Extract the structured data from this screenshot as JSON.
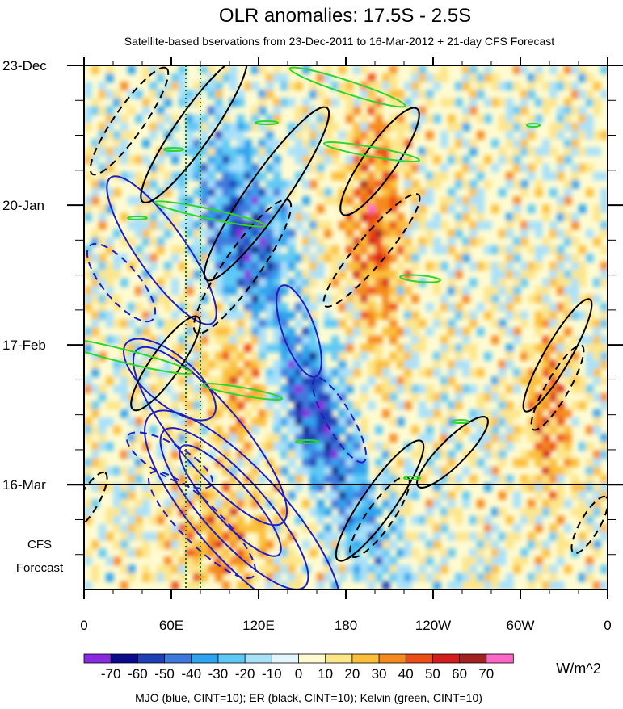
{
  "chart_data": {
    "type": "heatmap",
    "title": "OLR anomalies: 17.5S - 2.5S",
    "subtitle": "Satellite-based bservations from 23-Dec-2011 to 16-Mar-2012 + 21-day CFS Forecast",
    "x_ticks": [
      "0",
      "60E",
      "120E",
      "180",
      "120W",
      "60W",
      "0"
    ],
    "x_range": [
      0,
      360
    ],
    "y_ticks": [
      "23-Dec",
      "20-Jan",
      "17-Feb",
      "16-Mar"
    ],
    "y_tick_days": [
      0,
      28,
      56,
      84
    ],
    "y_range_days": [
      0,
      105
    ],
    "forecast_label": [
      "CFS",
      "Forecast"
    ],
    "forecast_start_day": 84,
    "colorbar": {
      "levels": [
        "-70",
        "-60",
        "-50",
        "-40",
        "-30",
        "-20",
        "-10",
        "0",
        "10",
        "20",
        "30",
        "40",
        "50",
        "60",
        "70"
      ],
      "colors": [
        "#8a2be2",
        "#0a0a8c",
        "#1e3fb8",
        "#3f78dd",
        "#2ea4ee",
        "#5ec9f5",
        "#a9e1fa",
        "#e3f6fd",
        "#fefbd2",
        "#fde68a",
        "#fbbf3a",
        "#f58a1f",
        "#ec4c16",
        "#d41d1d",
        "#a52020",
        "#ff66c8"
      ],
      "units": "W/m^2"
    },
    "contour_legend": "MJO (blue, CINT=10); ER (black, CINT=10); Kelvin (green, CINT=10)",
    "series": [
      {
        "name": "MJO",
        "color": "#1f1fbf"
      },
      {
        "name": "ER",
        "color": "#000000"
      },
      {
        "name": "Kelvin",
        "color": "#2ed52e"
      }
    ],
    "reference_lines_lon": [
      70,
      80
    ],
    "grid": false
  }
}
